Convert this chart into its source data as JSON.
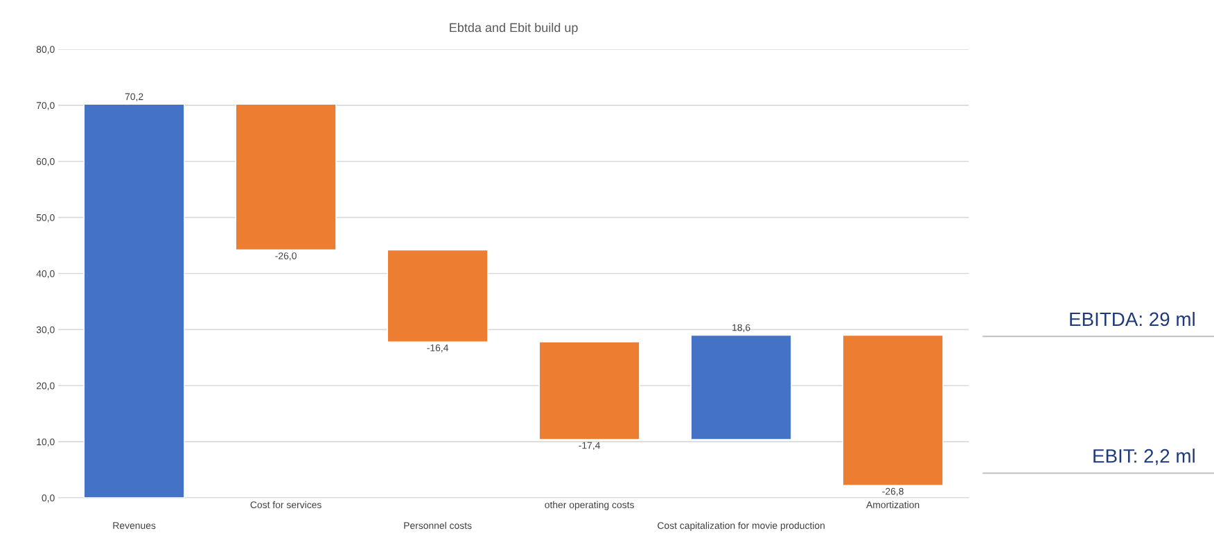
{
  "chart_data": {
    "type": "bar",
    "title": "Ebtda and Ebit build up",
    "categories": [
      "Revenues",
      "Cost for services",
      "Personnel costs",
      "other operating costs",
      "Cost capitalization for movie production",
      "Amortization"
    ],
    "values": [
      70.2,
      -26.0,
      -16.4,
      -17.4,
      18.6,
      -26.8
    ],
    "base": [
      0,
      70.2,
      44.2,
      27.8,
      10.4,
      29.0
    ],
    "colors": [
      "#4472c4",
      "#ed7d31",
      "#ed7d31",
      "#ed7d31",
      "#4472c4",
      "#ed7d31"
    ],
    "value_labels": [
      "70,2",
      "-26,0",
      "-16,4",
      "-17,4",
      "18,6",
      "-26,8"
    ],
    "ylim": [
      0,
      80
    ],
    "yticks": [
      {
        "value": 0,
        "label": "0,0"
      },
      {
        "value": 10,
        "label": "10,0"
      },
      {
        "value": 20,
        "label": "20,0"
      },
      {
        "value": 30,
        "label": "30,0"
      },
      {
        "value": 40,
        "label": "40,0"
      },
      {
        "value": 50,
        "label": "50,0"
      },
      {
        "value": 60,
        "label": "60,0"
      },
      {
        "value": 70,
        "label": "70,0"
      },
      {
        "value": 80,
        "label": "80,0"
      }
    ],
    "grid": "y",
    "annotations": [
      "EBITDA: 29 ml",
      "EBIT: 2,2 ml"
    ]
  }
}
